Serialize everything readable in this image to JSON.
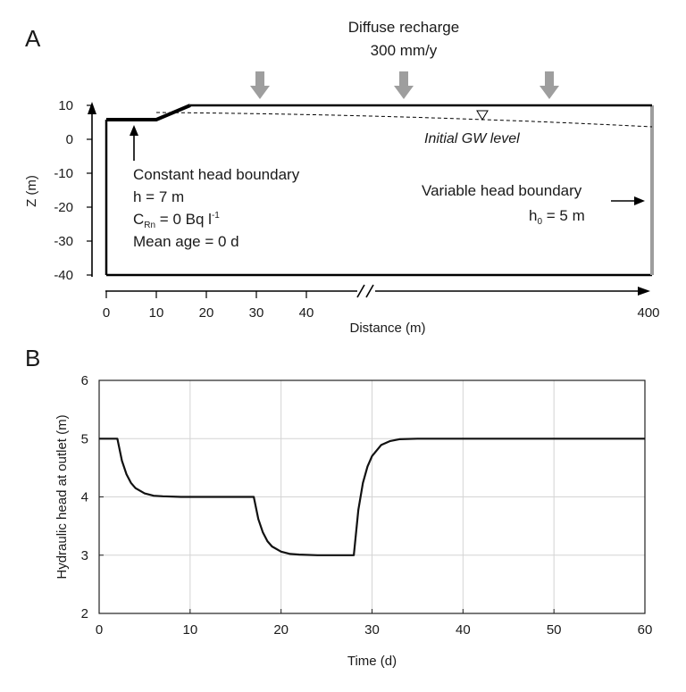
{
  "panel_a": {
    "label": "A",
    "recharge_title": "Diffuse recharge",
    "recharge_rate": "300 mm/y",
    "gw_level_label": "Initial GW level",
    "const_head_title": "Constant head boundary",
    "const_head_h": "h =  7 m",
    "const_head_c_prefix": "C",
    "const_head_c_sub": "Rn",
    "const_head_c_value": " = 0 Bq l",
    "const_head_c_sup": "-1",
    "const_head_age": "Mean age = 0 d",
    "var_head_title": "Variable head boundary",
    "var_head_h_prefix": "h",
    "var_head_h_sub": "0",
    "var_head_h_value": " = 5 m",
    "z_axis_label": "Z (m)",
    "z_ticks": [
      "10",
      "0",
      "-10",
      "-20",
      "-30",
      "-40"
    ],
    "x_axis_label": "Distance (m)",
    "x_ticks": [
      "0",
      "10",
      "20",
      "30",
      "40",
      "400"
    ],
    "colors": {
      "arrow": "#9e9e9e",
      "line": "#000000"
    }
  },
  "panel_b": {
    "label": "B",
    "chart_data": {
      "type": "line",
      "title": "",
      "xlabel": "Time (d)",
      "ylabel": "Hydraulic head at outlet (m)",
      "xlim": [
        0,
        60
      ],
      "ylim": [
        2,
        6
      ],
      "x_ticks": [
        "0",
        "10",
        "20",
        "30",
        "40",
        "50",
        "60"
      ],
      "y_ticks": [
        "2",
        "3",
        "4",
        "5",
        "6"
      ],
      "grid": true,
      "series": [
        {
          "x": [
            0,
            2,
            2.5,
            3,
            3.5,
            4,
            5,
            6,
            7,
            9,
            17,
            17.5,
            18,
            18.5,
            19,
            20,
            21,
            22,
            24,
            28,
            28.5,
            29,
            29.5,
            30,
            31,
            32,
            33,
            35,
            60
          ],
          "y": [
            5,
            5,
            4.62,
            4.39,
            4.24,
            4.15,
            4.06,
            4.02,
            4.01,
            4.0,
            4.0,
            3.62,
            3.39,
            3.24,
            3.15,
            3.06,
            3.02,
            3.01,
            3.0,
            3.0,
            3.78,
            4.24,
            4.52,
            4.7,
            4.89,
            4.96,
            4.99,
            5.0,
            5.0
          ],
          "color": "#111111"
        }
      ]
    }
  }
}
